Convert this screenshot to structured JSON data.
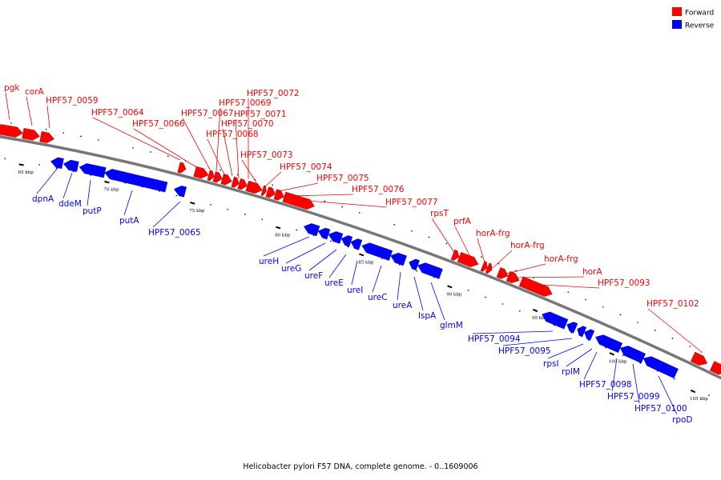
{
  "caption": "Helicobacter pylori F57 DNA, complete genome. - 0..1609006",
  "legend": [
    {
      "label": "Forward",
      "color": "#ff0000"
    },
    {
      "label": "Reverse",
      "color": "#0000ff"
    }
  ],
  "colors": {
    "forward": "#ff0000",
    "reverse": "#0000ff",
    "backbone": "#777777"
  },
  "scale_labels": [
    "65 kbp",
    "70 kbp",
    "75 kbp",
    "80 kbp",
    "85 kbp",
    "90 kbp",
    "95 kbp",
    "100 kbp",
    "105 kbp"
  ],
  "forward_genes": [
    "pgk",
    "corA",
    "HPF57_0059",
    "HPF57_0064",
    "HPF57_0066",
    "HPF57_0067",
    "HPF57_0068",
    "HPF57_0069",
    "HPF57_0070",
    "HPF57_0071",
    "HPF57_0072",
    "HPF57_0073",
    "HPF57_0074",
    "HPF57_0075",
    "HPF57_0076",
    "HPF57_0077",
    "rpsT",
    "prfA",
    "horA-frg",
    "horA-frg",
    "horA-frg",
    "horA",
    "HPF57_0093",
    "HPF57_0102"
  ],
  "reverse_genes": [
    "dpnA",
    "ddeM",
    "putP",
    "putA",
    "HPF57_0065",
    "ureH",
    "ureG",
    "ureF",
    "ureE",
    "ureI",
    "ureC",
    "ureA",
    "lspA",
    "glmM",
    "HPF57_0094",
    "HPF57_0095",
    "rpsI",
    "rplM",
    "HPF57_0098",
    "HPF57_0099",
    "HPF57_0100",
    "rpoD"
  ]
}
